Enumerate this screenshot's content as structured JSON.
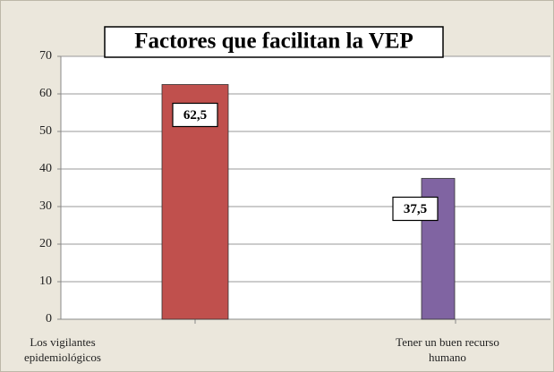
{
  "chart_data": {
    "type": "bar",
    "title": "Factores que facilitan la VEP",
    "categories": [
      "Los vigilantes epidemiológicos",
      "Tener un buen recurso humano"
    ],
    "values": [
      62.5,
      37.5
    ],
    "value_labels": [
      "62,5",
      "37,5"
    ],
    "colors": [
      "#c0504d",
      "#8064a2"
    ],
    "ylim": [
      0,
      70
    ],
    "yticks": [
      0,
      10,
      20,
      30,
      40,
      50,
      60,
      70
    ],
    "grid": true
  }
}
